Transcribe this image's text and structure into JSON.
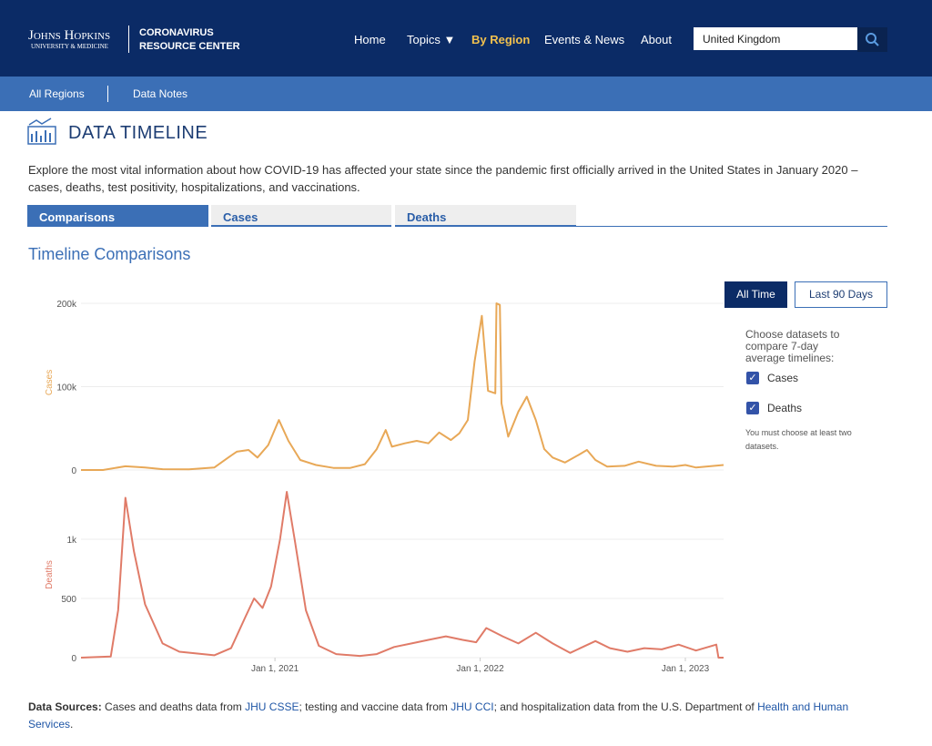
{
  "header": {
    "logo_line1": "Johns Hopkins",
    "logo_line2": "University & Medicine",
    "brand_line1": "CORONAVIRUS",
    "brand_line2": "RESOURCE CENTER",
    "nav": [
      "Home",
      "Topics ▼",
      "By Region",
      "Events & News",
      "About"
    ],
    "search_value": "United Kingdom"
  },
  "subnav": [
    "All Regions",
    "Data Notes"
  ],
  "page_title": "DATA TIMELINE",
  "description": "Explore the most vital information about how COVID-19 has affected your state since the pandemic first officially arrived in the United States in January 2020 – cases, deaths, test positivity, hospitalizations, and vaccinations.",
  "tabs": [
    "Comparisons",
    "Cases",
    "Deaths"
  ],
  "section_title": "Timeline Comparisons",
  "range_buttons": [
    "All Time",
    "Last 90 Days"
  ],
  "dataset_prompt": "Choose datasets to compare 7-day average timelines:",
  "datasets": [
    "Cases",
    "Deaths"
  ],
  "dataset_note": "You must choose at least two datasets.",
  "sources": {
    "label": "Data Sources:",
    "t1": " Cases and deaths data from ",
    "l1": "JHU CSSE",
    "t2": "; testing and vaccine data from ",
    "l2": "JHU CCI",
    "t3": "; and hospitalization data from the U.S. Department of ",
    "l3": "Health and Human Services",
    "t4": "."
  },
  "chart_data": [
    {
      "type": "line",
      "ylabel": "Cases",
      "color": "#e8a857",
      "grid": true,
      "x": [
        "2020-01-22",
        "2020-03-01",
        "2020-04-10",
        "2020-05-15",
        "2020-06-15",
        "2020-08-01",
        "2020-09-15",
        "2020-10-10",
        "2020-10-25",
        "2020-11-15",
        "2020-12-01",
        "2020-12-20",
        "2021-01-08",
        "2021-01-25",
        "2021-02-15",
        "2021-03-15",
        "2021-04-15",
        "2021-05-15",
        "2021-06-10",
        "2021-07-01",
        "2021-07-17",
        "2021-07-28",
        "2021-08-20",
        "2021-09-10",
        "2021-10-01",
        "2021-10-20",
        "2021-11-10",
        "2021-11-25",
        "2021-12-10",
        "2021-12-22",
        "2022-01-04",
        "2022-01-15",
        "2022-01-28",
        "2022-01-30",
        "2022-02-05",
        "2022-02-08",
        "2022-02-20",
        "2022-03-10",
        "2022-03-25",
        "2022-04-10",
        "2022-04-25",
        "2022-05-10",
        "2022-06-01",
        "2022-06-25",
        "2022-07-10",
        "2022-07-25",
        "2022-08-15",
        "2022-09-15",
        "2022-10-10",
        "2022-11-10",
        "2022-12-10",
        "2023-01-01",
        "2023-01-20",
        "2023-03-10"
      ],
      "values": [
        0,
        0,
        4500,
        3000,
        1000,
        800,
        3000,
        15000,
        22000,
        24000,
        15000,
        30000,
        60000,
        35000,
        12000,
        6000,
        2500,
        2500,
        7000,
        25000,
        48000,
        28000,
        32000,
        35000,
        32000,
        45000,
        36000,
        44000,
        60000,
        130000,
        185000,
        95000,
        92000,
        200000,
        198000,
        80000,
        40000,
        70000,
        88000,
        60000,
        25000,
        15000,
        9000,
        18000,
        24000,
        12000,
        4000,
        5000,
        10000,
        5000,
        4000,
        6000,
        3000,
        6000
      ],
      "xlim": [
        "2020-01-22",
        "2023-03-10"
      ],
      "ylim": [
        0,
        210000
      ],
      "yticks": [
        0,
        {
          "value": 100000,
          "label": "100k"
        },
        {
          "value": 200000,
          "label": "200k"
        }
      ]
    },
    {
      "type": "line",
      "ylabel": "Deaths",
      "color": "#e07b68",
      "grid": true,
      "x": [
        "2020-01-22",
        "2020-03-15",
        "2020-03-28",
        "2020-04-10",
        "2020-04-25",
        "2020-05-15",
        "2020-06-15",
        "2020-07-15",
        "2020-09-15",
        "2020-10-15",
        "2020-11-10",
        "2020-11-25",
        "2020-12-10",
        "2020-12-25",
        "2021-01-10",
        "2021-01-22",
        "2021-02-05",
        "2021-02-25",
        "2021-03-20",
        "2021-04-20",
        "2021-06-01",
        "2021-07-01",
        "2021-08-01",
        "2021-09-01",
        "2021-10-01",
        "2021-11-01",
        "2021-12-01",
        "2021-12-25",
        "2022-01-12",
        "2022-02-10",
        "2022-03-10",
        "2022-04-10",
        "2022-05-10",
        "2022-06-10",
        "2022-07-25",
        "2022-08-20",
        "2022-09-20",
        "2022-10-20",
        "2022-11-20",
        "2022-12-20",
        "2023-01-20",
        "2023-02-25",
        "2023-03-01",
        "2023-03-10"
      ],
      "values": [
        0,
        10,
        400,
        1350,
        900,
        450,
        120,
        50,
        20,
        80,
        350,
        500,
        420,
        600,
        1000,
        1400,
        1000,
        400,
        100,
        30,
        15,
        30,
        90,
        120,
        150,
        180,
        150,
        130,
        250,
        180,
        120,
        210,
        120,
        40,
        140,
        80,
        50,
        80,
        70,
        110,
        60,
        110,
        0,
        0
      ],
      "xlim": [
        "2020-01-22",
        "2023-03-10"
      ],
      "ylim": [
        0,
        1400
      ],
      "xticks": [
        {
          "value": "2021-01-01",
          "label": "Jan 1, 2021"
        },
        {
          "value": "2022-01-01",
          "label": "Jan 1, 2022"
        },
        {
          "value": "2023-01-01",
          "label": "Jan 1, 2023"
        }
      ],
      "yticks": [
        0,
        500,
        {
          "value": 1000,
          "label": "1k"
        }
      ]
    }
  ]
}
